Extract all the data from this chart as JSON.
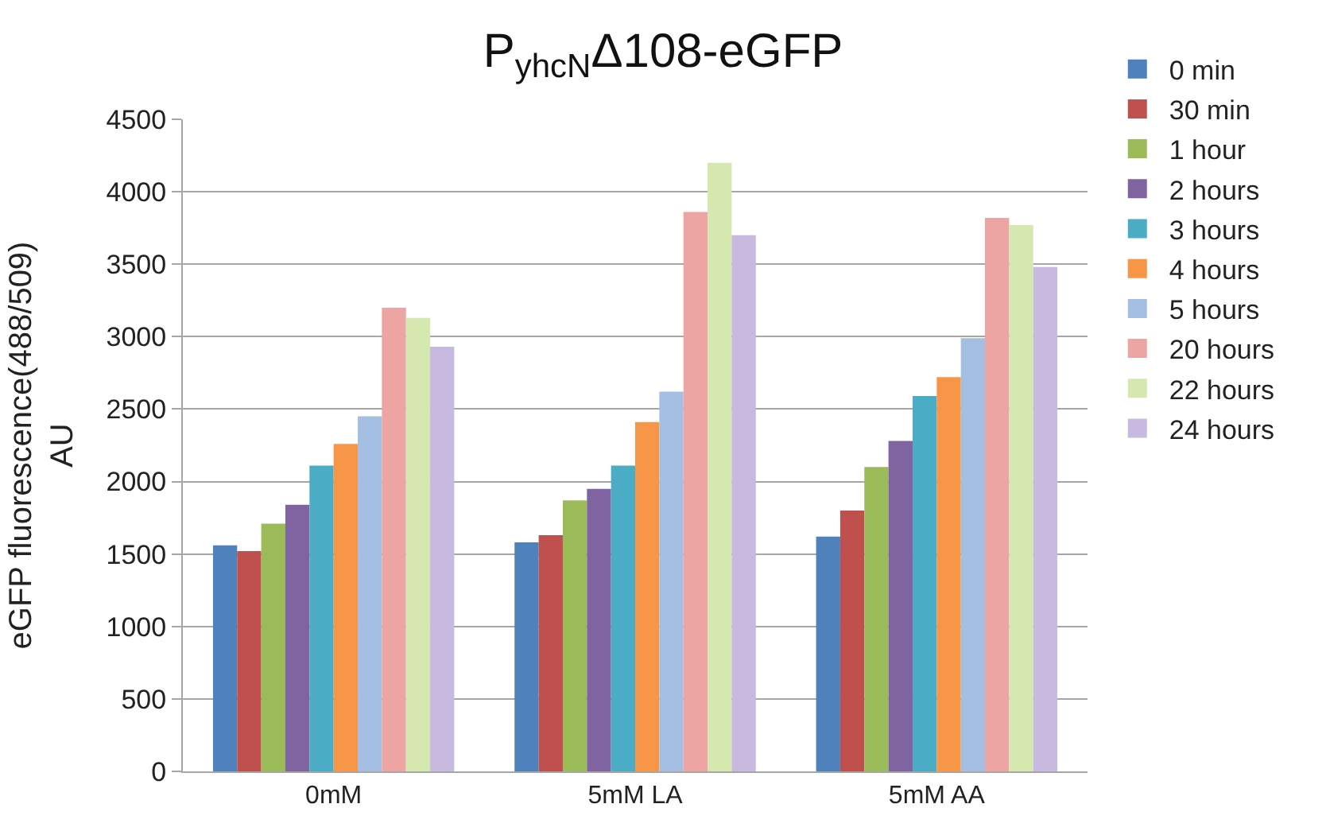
{
  "chart_data": {
    "type": "bar",
    "title": "P$_{yhcN}$Δ108-eGFP",
    "ylabel": "eGFP fluorescence(488/509)\nAU",
    "categories": [
      "0mM",
      "5mM LA",
      "5mM AA"
    ],
    "series": [
      {
        "name": "0 min",
        "color": "#4f81bd",
        "values": [
          1560,
          1580,
          1620
        ]
      },
      {
        "name": "30 min",
        "color": "#c0504d",
        "values": [
          1520,
          1630,
          1800
        ]
      },
      {
        "name": "1 hour",
        "color": "#9bbb59",
        "values": [
          1710,
          1870,
          2100
        ]
      },
      {
        "name": "2 hours",
        "color": "#8064a2",
        "values": [
          1840,
          1950,
          2280
        ]
      },
      {
        "name": "3 hours",
        "color": "#4bacc6",
        "values": [
          2110,
          2110,
          2590
        ]
      },
      {
        "name": "4 hours",
        "color": "#f79646",
        "values": [
          2260,
          2410,
          2720
        ]
      },
      {
        "name": "5 hours",
        "color": "#a5bfe3",
        "values": [
          2450,
          2620,
          2990
        ]
      },
      {
        "name": "20 hours",
        "color": "#eda5a3",
        "values": [
          3200,
          3860,
          3820
        ]
      },
      {
        "name": "22 hours",
        "color": "#d5e8b0",
        "values": [
          3130,
          4200,
          3770
        ]
      },
      {
        "name": "24 hours",
        "color": "#c8b9e0",
        "values": [
          2930,
          3700,
          3480
        ]
      }
    ],
    "ylim": [
      0,
      4500
    ],
    "yticks": [
      0,
      500,
      1000,
      1500,
      2000,
      2500,
      3000,
      3500,
      4000,
      4500
    ],
    "grid": "y",
    "legend": "right"
  }
}
